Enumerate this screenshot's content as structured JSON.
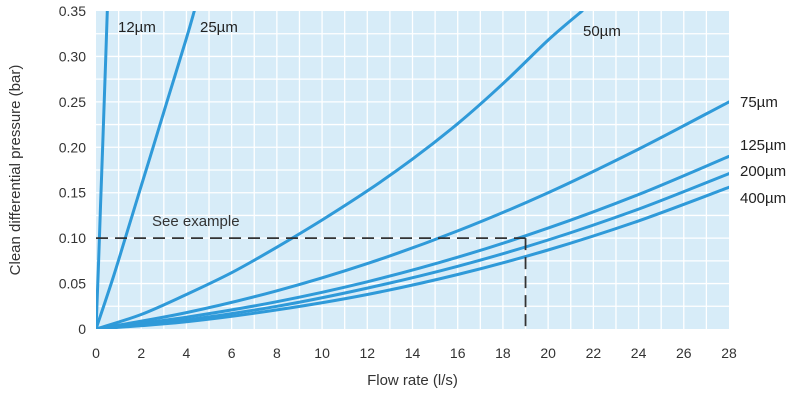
{
  "chart_data": {
    "type": "line",
    "xlabel": "Flow rate (l/s)",
    "ylabel": "Clean differential pressure (bar)",
    "xlim": [
      0,
      28
    ],
    "ylim": [
      0,
      0.35
    ],
    "x_ticks": [
      0,
      2,
      4,
      6,
      8,
      10,
      12,
      14,
      16,
      18,
      20,
      22,
      24,
      26,
      28
    ],
    "y_ticks": [
      0,
      0.05,
      0.1,
      0.15,
      0.2,
      0.25,
      0.3,
      0.35
    ],
    "y_tick_labels": [
      "0",
      "0.05",
      "0.10",
      "0.15",
      "0.20",
      "0.25",
      "0.30",
      "0.35"
    ],
    "grid": true,
    "background_color": "#d7ecf8",
    "grid_color": "#ffffff",
    "line_color": "#2f9ad9",
    "series": [
      {
        "name": "12µm",
        "x": [
          0,
          0.1,
          0.2,
          0.3,
          0.4,
          0.5
        ],
        "y": [
          0,
          0.065,
          0.135,
          0.205,
          0.275,
          0.35
        ]
      },
      {
        "name": "25µm",
        "x": [
          0,
          0.8,
          1.6,
          2.4,
          3.2,
          4.0,
          4.35
        ],
        "y": [
          0,
          0.06,
          0.125,
          0.19,
          0.255,
          0.32,
          0.35
        ]
      },
      {
        "name": "50µm",
        "x": [
          0,
          2,
          4,
          6,
          8,
          10,
          12,
          14,
          16,
          18,
          20,
          21.5
        ],
        "y": [
          0,
          0.016,
          0.038,
          0.062,
          0.09,
          0.12,
          0.152,
          0.187,
          0.226,
          0.27,
          0.318,
          0.35
        ]
      },
      {
        "name": "75µm",
        "x": [
          0,
          4,
          8,
          12,
          16,
          20,
          24,
          28
        ],
        "y": [
          0,
          0.018,
          0.042,
          0.072,
          0.108,
          0.15,
          0.198,
          0.25
        ]
      },
      {
        "name": "125µm",
        "x": [
          0,
          4,
          8,
          12,
          16,
          20,
          24,
          28
        ],
        "y": [
          0,
          0.013,
          0.03,
          0.052,
          0.079,
          0.111,
          0.148,
          0.19
        ]
      },
      {
        "name": "200µm",
        "x": [
          0,
          4,
          8,
          12,
          16,
          20,
          24,
          28
        ],
        "y": [
          0,
          0.01,
          0.025,
          0.045,
          0.069,
          0.098,
          0.132,
          0.171
        ]
      },
      {
        "name": "400µm",
        "x": [
          0,
          4,
          8,
          12,
          16,
          20,
          24,
          28
        ],
        "y": [
          0,
          0.008,
          0.021,
          0.038,
          0.06,
          0.087,
          0.119,
          0.156
        ]
      }
    ],
    "annotation": {
      "text": "See example",
      "y": 0.1,
      "x_end": 19.0
    }
  }
}
